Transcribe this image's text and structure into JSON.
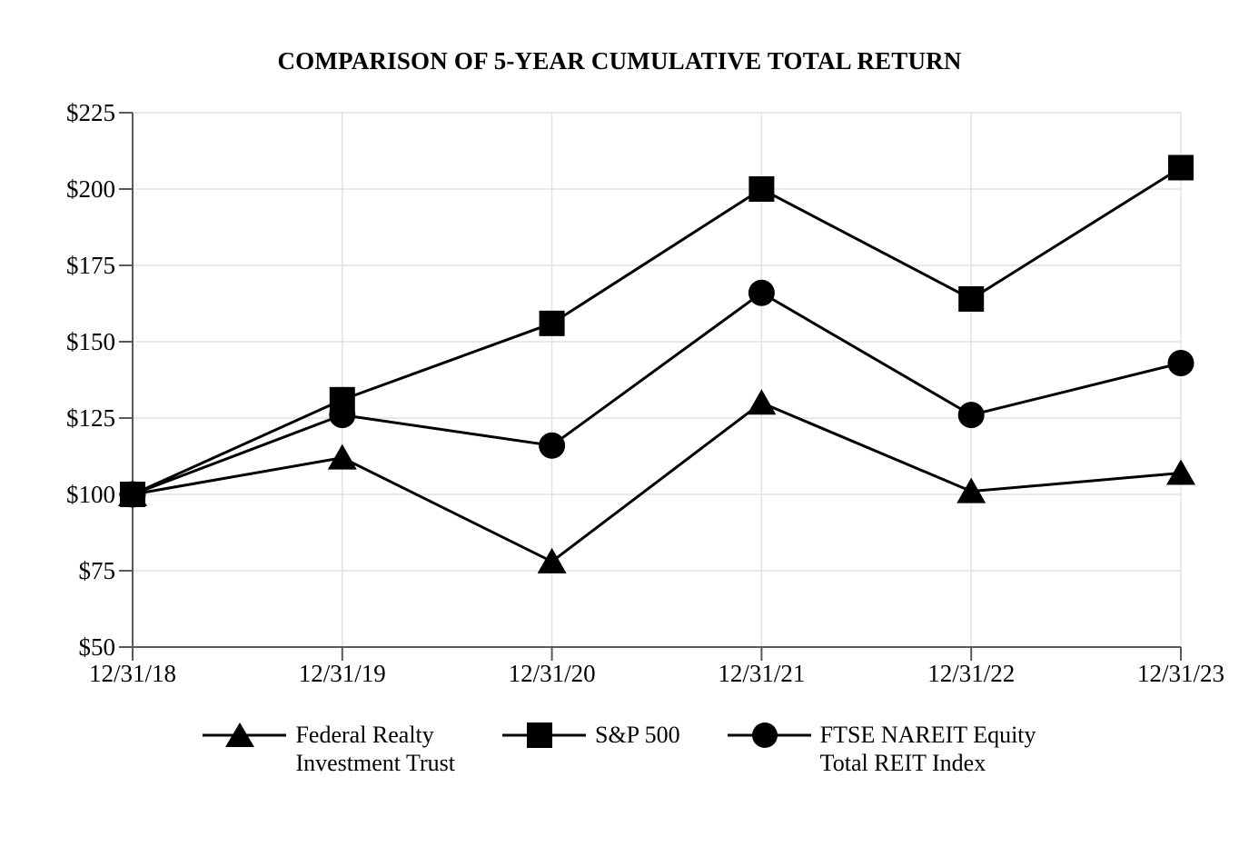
{
  "title": "COMPARISON OF 5-YEAR CUMULATIVE TOTAL RETURN",
  "chart_data": {
    "type": "line",
    "title": "COMPARISON OF 5-YEAR CUMULATIVE TOTAL RETURN",
    "x_tick_labels": [
      "12/31/18",
      "12/31/19",
      "12/31/20",
      "12/31/21",
      "12/31/22",
      "12/31/23"
    ],
    "y_ticks": [
      50,
      75,
      100,
      125,
      150,
      175,
      200,
      225
    ],
    "y_tick_labels": [
      "$50",
      "$75",
      "$100",
      "$125",
      "$150",
      "$175",
      "$200",
      "$225"
    ],
    "ylim": [
      50,
      225
    ],
    "grid": true,
    "legend_position": "bottom",
    "series": [
      {
        "name": "Federal Realty Investment Trust",
        "legend_label": "Federal Realty\nInvestment Trust",
        "marker": "triangle",
        "values": [
          100,
          112,
          78,
          130,
          101,
          107
        ]
      },
      {
        "name": "S&P 500",
        "legend_label": "S&P 500",
        "marker": "square",
        "values": [
          100,
          131,
          156,
          200,
          164,
          207
        ]
      },
      {
        "name": "FTSE NAREIT Equity Total REIT Index",
        "legend_label": "FTSE NAREIT Equity\nTotal REIT Index",
        "marker": "circle",
        "values": [
          100,
          126,
          116,
          166,
          126,
          143
        ]
      }
    ],
    "colors": {
      "series_line": "#000000",
      "marker_fill": "#000000",
      "grid_line": "#e2e2e2",
      "axis_line": "#595959",
      "label_text": "#000000"
    }
  }
}
